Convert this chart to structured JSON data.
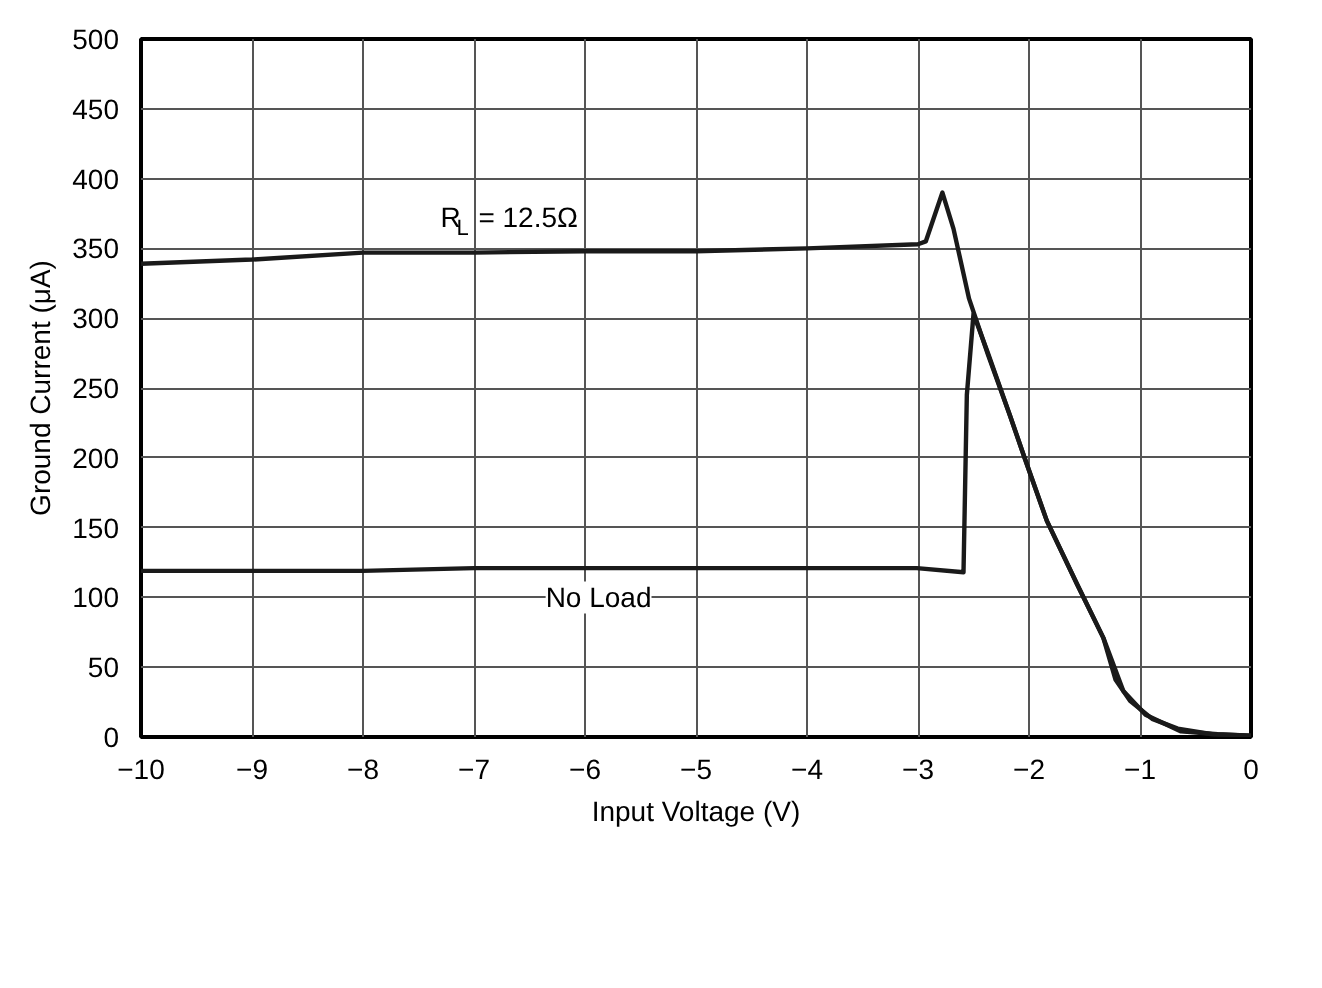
{
  "chart_data": {
    "type": "line",
    "xlabel": "Input Voltage (V)",
    "ylabel": "Ground Current (μA)",
    "xlim": [
      -10,
      0
    ],
    "ylim": [
      0,
      500
    ],
    "xticks": [
      {
        "value": -10,
        "label": "−10"
      },
      {
        "value": -9,
        "label": "−9"
      },
      {
        "value": -8,
        "label": "−8"
      },
      {
        "value": -7,
        "label": "−7"
      },
      {
        "value": -6,
        "label": "−6"
      },
      {
        "value": -5,
        "label": "−5"
      },
      {
        "value": -4,
        "label": "−4"
      },
      {
        "value": -3,
        "label": "−3"
      },
      {
        "value": -2,
        "label": "−2"
      },
      {
        "value": -1,
        "label": "−1"
      },
      0
    ],
    "yticks": [
      0,
      50,
      100,
      150,
      200,
      250,
      300,
      350,
      400,
      450,
      500
    ],
    "grid": true,
    "marker": "none",
    "line_style": "solid",
    "series": [
      {
        "color": "#1a1a1a",
        "x": [
          -10,
          -9,
          -8,
          -7,
          -6,
          -5,
          -4,
          -3,
          -2.93,
          -2.78,
          -2.68,
          -2.54,
          -2.37,
          -2.17,
          -2.04,
          -1.84,
          -1.57,
          -1.33,
          -1.22,
          -1.09,
          -0.89,
          -0.66,
          -0.35,
          0
        ],
        "values": [
          339,
          342,
          347,
          347,
          348,
          348,
          350,
          353,
          355,
          390,
          364,
          314,
          274,
          230,
          200,
          155,
          110,
          71,
          41,
          26,
          13,
          6,
          2,
          1
        ]
      },
      {
        "color": "#1a1a1a",
        "x": [
          -10,
          -9,
          -8,
          -7,
          -6,
          -5,
          -4,
          -3.01,
          -2.59,
          -2.56,
          -2.5,
          -2.37,
          -2.17,
          -2.04,
          -1.84,
          -1.57,
          -1.33,
          -1.15,
          -0.95,
          -0.63,
          -0.3,
          0
        ],
        "values": [
          119,
          119,
          119,
          121,
          121,
          121,
          121,
          121,
          118,
          245,
          303,
          275,
          230,
          200,
          155,
          110,
          71,
          33,
          16,
          4,
          2,
          1
        ]
      }
    ],
    "annotations": [
      "R$_{L}$ = 12.5Ω",
      "No Load"
    ]
  }
}
